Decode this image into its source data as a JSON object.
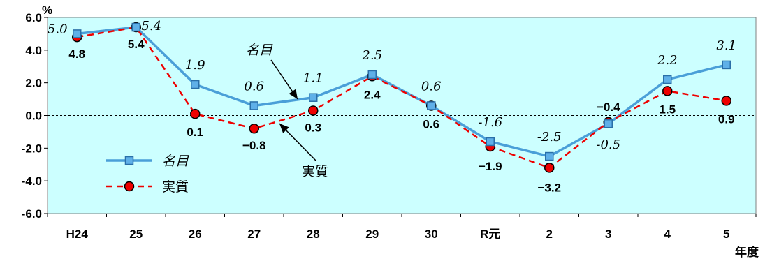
{
  "chart_data": {
    "type": "line",
    "ylabel": "%",
    "xlabel": "年度",
    "ylim": [
      -6,
      6
    ],
    "yticks": [
      "6.0",
      "4.0",
      "2.0",
      "0.0",
      "-2.0",
      "-4.0",
      "-6.0"
    ],
    "categories": [
      "H24",
      "25",
      "26",
      "27",
      "28",
      "29",
      "30",
      "R元",
      "2",
      "3",
      "4",
      "5"
    ],
    "series": [
      {
        "name": "名目",
        "values": [
          5.0,
          5.4,
          1.9,
          0.6,
          1.1,
          2.5,
          0.6,
          -1.6,
          -2.5,
          -0.5,
          2.2,
          3.1
        ],
        "labels": [
          "5.0",
          "5.4",
          "1.9",
          "0.6",
          "1.1",
          "2.5",
          "0.6",
          "-1.6",
          "-2.5",
          "-0.5",
          "2.2",
          "3.1"
        ],
        "color": "#4a9fd8",
        "marker_fill": "#5fb0e8",
        "marker_stroke": "#2a6fa8"
      },
      {
        "name": "実質",
        "values": [
          4.8,
          5.4,
          0.1,
          -0.8,
          0.3,
          2.4,
          0.6,
          -1.9,
          -3.2,
          -0.4,
          1.5,
          0.9
        ],
        "labels": [
          "4.8",
          "5.4",
          "0.1",
          "−0.8",
          "0.3",
          "2.4",
          "0.6",
          "−1.9",
          "−3.2",
          "−0.4",
          "1.5",
          "0.9"
        ],
        "color": "#ee0000",
        "marker_fill": "#ee0000",
        "marker_stroke": "#000000"
      }
    ],
    "annotations": {
      "nominal": "名目",
      "real": "実質"
    },
    "legend": {
      "position": "bottom-left",
      "nominal": "名目",
      "real": "実質"
    },
    "colors": {
      "plot_bg": "#ccffff",
      "grid": "#000000"
    },
    "grid": false
  }
}
